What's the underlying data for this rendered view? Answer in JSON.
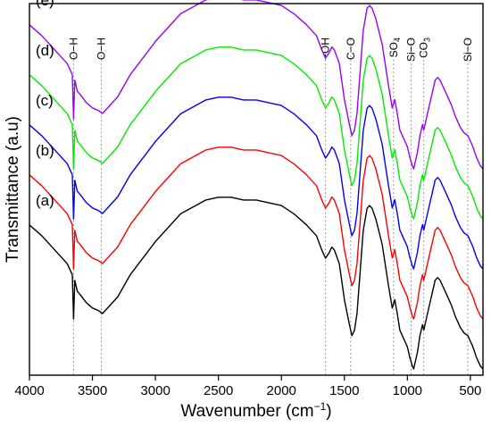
{
  "chart_data": {
    "type": "line",
    "xlabel": "Wavenumber (cm",
    "xlabel_sup": "−1",
    "xlabel_tail": ")",
    "ylabel": "Transmittance (a.u)",
    "xlim": [
      4000,
      400
    ],
    "xticks": [
      {
        "v": 4000,
        "label": "4000"
      },
      {
        "v": 3500,
        "label": "3500"
      },
      {
        "v": 3000,
        "label": "3000"
      },
      {
        "v": 2500,
        "label": "2500"
      },
      {
        "v": 2000,
        "label": "2000"
      },
      {
        "v": 1500,
        "label": "1500"
      },
      {
        "v": 1000,
        "label": "1000"
      },
      {
        "v": 500,
        "label": "500"
      }
    ],
    "grid": false,
    "band_markers": [
      {
        "x": 3650,
        "label": "O−H"
      },
      {
        "x": 3430,
        "label": "O−H"
      },
      {
        "x": 1650,
        "label": "−OH"
      },
      {
        "x": 1450,
        "label": "C−O"
      },
      {
        "x": 1110,
        "label": "SO",
        "sub": "4"
      },
      {
        "x": 970,
        "label": "Si−O"
      },
      {
        "x": 870,
        "label": "CO",
        "sub": "3"
      },
      {
        "x": 520,
        "label": "Si−O"
      }
    ],
    "series": [
      {
        "name": "(a)",
        "color": "#000000",
        "offset": 0
      },
      {
        "name": "(b)",
        "color": "#ff0000",
        "offset": 1
      },
      {
        "name": "(c)",
        "color": "#0000ff",
        "offset": 2
      },
      {
        "name": "(d)",
        "color": "#00ee00",
        "offset": 3
      },
      {
        "name": "(e)",
        "color": "#9900ff",
        "offset": 4
      }
    ],
    "base_profile": {
      "x": [
        4000,
        3900,
        3800,
        3700,
        3660,
        3650,
        3640,
        3620,
        3600,
        3550,
        3500,
        3450,
        3420,
        3400,
        3300,
        3200,
        3000,
        2800,
        2600,
        2500,
        2400,
        2300,
        2200,
        2000,
        1900,
        1800,
        1720,
        1680,
        1650,
        1620,
        1600,
        1580,
        1540,
        1500,
        1460,
        1440,
        1420,
        1400,
        1380,
        1350,
        1320,
        1300,
        1280,
        1250,
        1200,
        1150,
        1120,
        1100,
        1080,
        1060,
        1040,
        1000,
        980,
        960,
        950,
        940,
        920,
        900,
        880,
        870,
        860,
        840,
        820,
        800,
        780,
        760,
        740,
        720,
        700,
        680,
        650,
        620,
        600,
        580,
        550,
        520,
        500,
        480,
        450,
        420,
        400
      ],
      "y": [
        52,
        48,
        43,
        38,
        34,
        18,
        32,
        28,
        27,
        24,
        22,
        21,
        20,
        21,
        26,
        34,
        46,
        56,
        61,
        62,
        62,
        61,
        61,
        59,
        56,
        52,
        48,
        43,
        40,
        42,
        44,
        43,
        38,
        25,
        16,
        12,
        14,
        20,
        32,
        50,
        58,
        59,
        58,
        54,
        45,
        30,
        22,
        25,
        20,
        14,
        12,
        8,
        4,
        1,
        0,
        2,
        6,
        12,
        16,
        14,
        16,
        20,
        24,
        28,
        32,
        33,
        32,
        30,
        28,
        26,
        23,
        19,
        17,
        15,
        13,
        12,
        10,
        8,
        4,
        1,
        0
      ]
    }
  }
}
